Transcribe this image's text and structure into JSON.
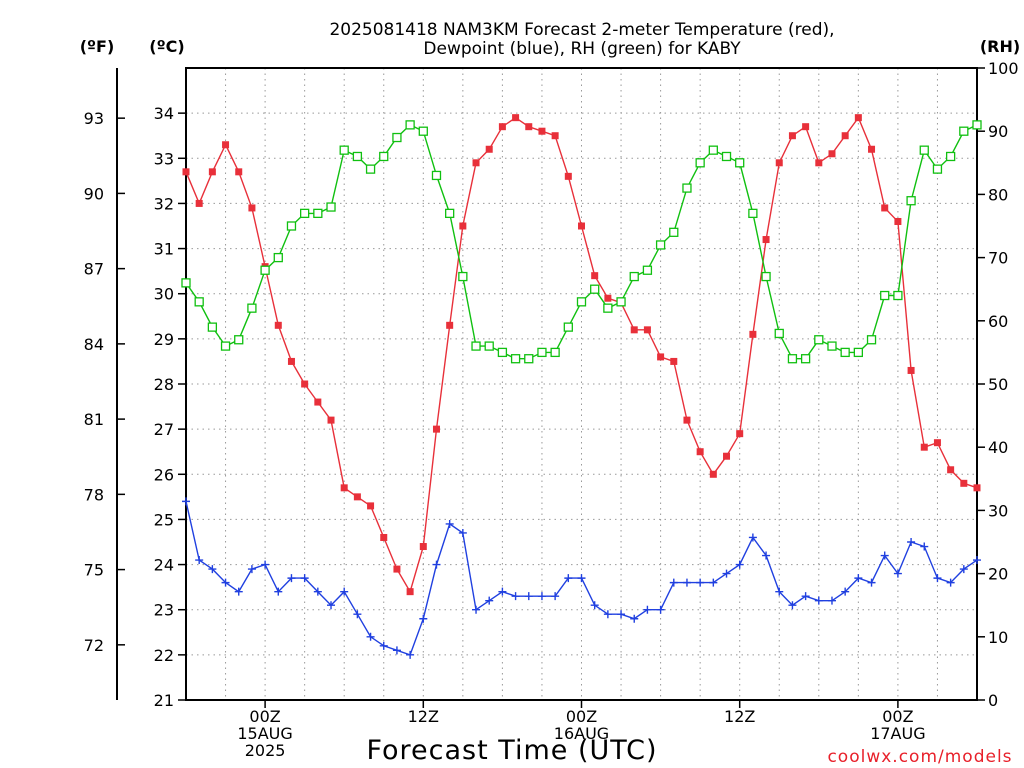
{
  "chart_data": {
    "type": "line",
    "title_lines": [
      "2025081418 NAM3KM Forecast 2-meter Temperature (red),",
      "Dewpoint (blue), RH (green) for KABY"
    ],
    "xlabel": "Forecast Time (UTC)",
    "credit": "coolwx.com/models",
    "units": {
      "fahrenheit": "(ºF)",
      "celsius": "(ºC)",
      "rh": "(RH)"
    },
    "x_range_hours": [
      0,
      60
    ],
    "x_ticks": [
      {
        "hour": 6,
        "lines": [
          "00Z",
          "15AUG",
          "2025"
        ]
      },
      {
        "hour": 18,
        "lines": [
          "12Z"
        ]
      },
      {
        "hour": 30,
        "lines": [
          "00Z",
          "16AUG"
        ]
      },
      {
        "hour": 42,
        "lines": [
          "12Z"
        ]
      },
      {
        "hour": 54,
        "lines": [
          "00Z",
          "17AUG"
        ]
      }
    ],
    "celsius_axis": {
      "range": [
        21,
        35
      ],
      "ticks": [
        21,
        22,
        23,
        24,
        25,
        26,
        27,
        28,
        29,
        30,
        31,
        32,
        33,
        34
      ]
    },
    "fahrenheit_axis": {
      "ticks": [
        72,
        75,
        78,
        81,
        84,
        87,
        90,
        93
      ]
    },
    "rh_axis": {
      "range": [
        0,
        100
      ],
      "ticks": [
        0,
        10,
        20,
        30,
        40,
        50,
        60,
        70,
        80,
        90,
        100
      ]
    },
    "grid": true,
    "x_hours": [
      0,
      1,
      2,
      3,
      4,
      5,
      6,
      7,
      8,
      9,
      10,
      11,
      12,
      13,
      14,
      15,
      16,
      17,
      18,
      19,
      20,
      21,
      22,
      23,
      24,
      25,
      26,
      27,
      28,
      29,
      30,
      31,
      32,
      33,
      34,
      35,
      36,
      37,
      38,
      39,
      40,
      41,
      42,
      43,
      44,
      45,
      46,
      47,
      48,
      49,
      50,
      51,
      52,
      53,
      54,
      55,
      56,
      57,
      58,
      59,
      60
    ],
    "series": [
      {
        "name": "Temperature",
        "axis": "celsius",
        "color": "#e8303a",
        "marker": "filled-square",
        "values": [
          32.7,
          32.0,
          32.7,
          33.3,
          32.7,
          31.9,
          30.6,
          29.3,
          28.5,
          28.0,
          27.6,
          27.2,
          25.7,
          25.5,
          25.3,
          24.6,
          23.9,
          23.4,
          24.4,
          27.0,
          29.3,
          31.5,
          32.9,
          33.2,
          33.7,
          33.9,
          33.7,
          33.6,
          33.5,
          32.6,
          31.5,
          30.4,
          29.9,
          29.8,
          29.2,
          29.2,
          28.6,
          28.5,
          27.2,
          26.5,
          26.0,
          26.4,
          26.9,
          29.1,
          31.2,
          32.9,
          33.5,
          33.7,
          32.9,
          33.1,
          33.5,
          33.9,
          33.2,
          31.9,
          31.6,
          28.3,
          26.6,
          26.7,
          26.1,
          25.8,
          25.7
        ]
      },
      {
        "name": "Dewpoint",
        "axis": "celsius",
        "color": "#2040e0",
        "marker": "plus",
        "values": [
          25.4,
          24.1,
          23.9,
          23.6,
          23.4,
          23.9,
          24.0,
          23.4,
          23.7,
          23.7,
          23.4,
          23.1,
          23.4,
          22.9,
          22.4,
          22.2,
          22.1,
          22.0,
          22.8,
          24.0,
          24.9,
          24.7,
          23.0,
          23.2,
          23.4,
          23.3,
          23.3,
          23.3,
          23.3,
          23.7,
          23.7,
          23.1,
          22.9,
          22.9,
          22.8,
          23.0,
          23.0,
          23.6,
          23.6,
          23.6,
          23.6,
          23.8,
          24.0,
          24.6,
          24.2,
          23.4,
          23.1,
          23.3,
          23.2,
          23.2,
          23.4,
          23.7,
          23.6,
          24.2,
          23.8,
          24.5,
          24.4,
          23.7,
          23.6,
          23.9,
          24.1
        ]
      },
      {
        "name": "RH",
        "axis": "rh",
        "color": "#10c010",
        "marker": "open-square",
        "values": [
          66,
          63,
          59,
          56,
          57,
          62,
          68,
          70,
          75,
          77,
          77,
          78,
          87,
          86,
          84,
          86,
          89,
          91,
          90,
          83,
          77,
          67,
          56,
          56,
          55,
          54,
          54,
          55,
          55,
          59,
          63,
          65,
          62,
          63,
          67,
          68,
          72,
          74,
          81,
          85,
          87,
          86,
          85,
          77,
          67,
          58,
          54,
          54,
          57,
          56,
          55,
          55,
          57,
          64,
          64,
          79,
          87,
          84,
          86,
          90,
          91
        ]
      }
    ]
  }
}
